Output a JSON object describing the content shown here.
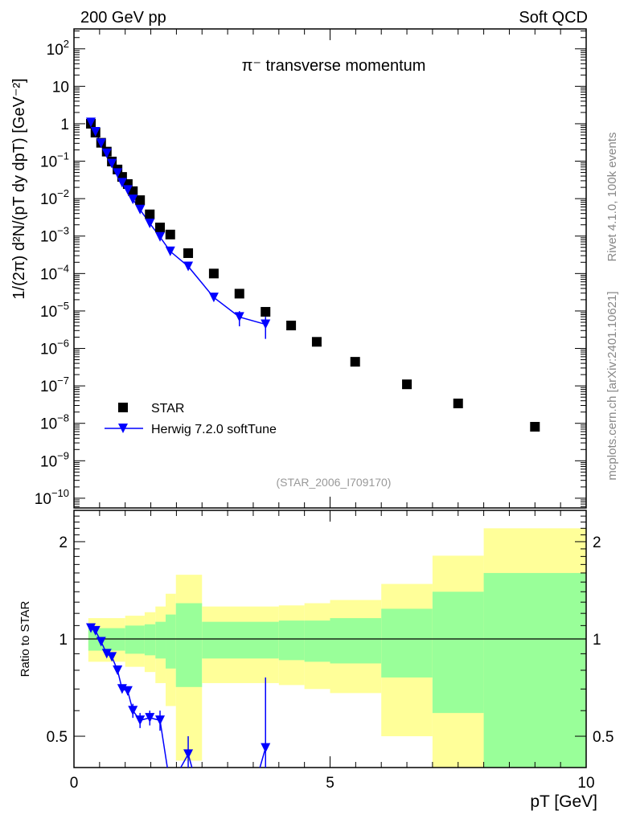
{
  "header": {
    "left": "200 GeV pp",
    "right": "Soft QCD"
  },
  "side": {
    "rivet": "Rivet 4.1.0,  100k events",
    "mcplots": "mcplots.cern.ch [arXiv:2401.10621]"
  },
  "reference": "(STAR_2006_I709170)",
  "colors": {
    "star": "#000000",
    "herwig": "#0000ff",
    "band_total": "#ffff99",
    "band_stat": "#99ff99"
  },
  "chart_data": [
    {
      "type": "scatter",
      "title": "π⁻ transverse momentum",
      "ylabel": "1/(2π)  d²N/(pT dy dpT) [GeV⁻²]",
      "ylabel_parts": {
        "a": "1/(2π)  d",
        "sup2": "2",
        "b": "N/(p",
        "subT": "T",
        "c": " dy dp",
        "subT2": "T",
        "d": ") [GeV",
        "supm2": "-2",
        "e": "]"
      },
      "yscale": "log",
      "ylim": [
        5.5e-11,
        340
      ],
      "xlim": [
        0,
        10
      ],
      "yticks": [
        {
          "v": 1e-10,
          "base": "10",
          "exp": "−10"
        },
        {
          "v": 1e-09,
          "base": "10",
          "exp": "−9"
        },
        {
          "v": 1e-08,
          "base": "10",
          "exp": "−8"
        },
        {
          "v": 1e-07,
          "base": "10",
          "exp": "−7"
        },
        {
          "v": 1e-06,
          "base": "10",
          "exp": "−6"
        },
        {
          "v": 1e-05,
          "base": "10",
          "exp": "−5"
        },
        {
          "v": 0.0001,
          "base": "10",
          "exp": "−4"
        },
        {
          "v": 0.001,
          "base": "10",
          "exp": "−3"
        },
        {
          "v": 0.01,
          "base": "10",
          "exp": "−2"
        },
        {
          "v": 0.1,
          "base": "10",
          "exp": "−1"
        },
        {
          "v": 1,
          "base": "1",
          "exp": ""
        },
        {
          "v": 10,
          "base": "10",
          "exp": ""
        },
        {
          "v": 100,
          "base": "10",
          "exp": "2"
        }
      ],
      "legend": {
        "position": "bottom-left",
        "entries": [
          "STAR",
          "Herwig 7.2.0 softTune"
        ]
      },
      "series": [
        {
          "name": "STAR",
          "marker": "square",
          "x": [
            0.33,
            0.42,
            0.53,
            0.64,
            0.74,
            0.85,
            0.94,
            1.05,
            1.15,
            1.29,
            1.48,
            1.68,
            1.88,
            2.23,
            2.73,
            3.23,
            3.74,
            4.24,
            4.74,
            5.49,
            6.5,
            7.5,
            9.0
          ],
          "y": [
            1.0,
            0.58,
            0.31,
            0.18,
            0.098,
            0.06,
            0.038,
            0.0245,
            0.0158,
            0.0091,
            0.0038,
            0.0017,
            0.0011,
            0.00035,
            0.0001,
            2.9e-05,
            9.5e-06,
            4.1e-06,
            1.5e-06,
            4.4e-07,
            1.1e-07,
            3.4e-08,
            8.1e-09
          ]
        },
        {
          "name": "Herwig 7.2.0 softTune",
          "marker": "triangle-down",
          "x": [
            0.33,
            0.42,
            0.53,
            0.64,
            0.74,
            0.85,
            0.94,
            1.05,
            1.15,
            1.29,
            1.48,
            1.68,
            1.88,
            2.23,
            2.73,
            3.23,
            3.74
          ],
          "y": [
            1.08,
            0.61,
            0.3,
            0.162,
            0.086,
            0.048,
            0.0266,
            0.017,
            0.0095,
            0.0051,
            0.00218,
            0.00095,
            0.00039,
            0.000155,
            2.3e-05,
            6.9e-06,
            4.4e-06
          ],
          "yerr": [
            0,
            0,
            0,
            0,
            0,
            0,
            0,
            0,
            0,
            0,
            0,
            0,
            0,
            0,
            4e-06,
            3e-06,
            2.6e-06
          ]
        }
      ]
    },
    {
      "type": "line",
      "ylabel": "Ratio to STAR",
      "xlabel": "pT [GeV]",
      "xlabel_parts": {
        "p": "p",
        "sub": "T",
        "rest": " [GeV]"
      },
      "yscale": "log",
      "ylim": [
        0.4,
        2.5
      ],
      "xlim": [
        0,
        10
      ],
      "xticks": [
        {
          "v": 0,
          "label": "0"
        },
        {
          "v": 5,
          "label": "5"
        },
        {
          "v": 10,
          "label": "10"
        }
      ],
      "yticks": [
        {
          "v": 0.5,
          "label": "0.5"
        },
        {
          "v": 1,
          "label": "1"
        },
        {
          "v": 2,
          "label": "2"
        }
      ],
      "bands": [
        {
          "xlo": 0.28,
          "xhi": 1.0,
          "total": [
            0.85,
            1.16
          ],
          "stat": [
            0.92,
            1.08
          ]
        },
        {
          "xlo": 1.0,
          "xhi": 1.38,
          "total": [
            0.82,
            1.18
          ],
          "stat": [
            0.9,
            1.1
          ]
        },
        {
          "xlo": 1.38,
          "xhi": 1.59,
          "total": [
            0.79,
            1.21
          ],
          "stat": [
            0.89,
            1.11
          ]
        },
        {
          "xlo": 1.59,
          "xhi": 1.79,
          "total": [
            0.73,
            1.26
          ],
          "stat": [
            0.87,
            1.13
          ]
        },
        {
          "xlo": 1.79,
          "xhi": 1.99,
          "total": [
            0.62,
            1.38
          ],
          "stat": [
            0.81,
            1.19
          ]
        },
        {
          "xlo": 1.99,
          "xhi": 2.5,
          "total": [
            0.42,
            1.58
          ],
          "stat": [
            0.71,
            1.29
          ]
        },
        {
          "xlo": 2.5,
          "xhi": 4.0,
          "total": [
            0.73,
            1.26
          ],
          "stat": [
            0.87,
            1.13
          ]
        },
        {
          "xlo": 4.0,
          "xhi": 4.5,
          "total": [
            0.72,
            1.27
          ],
          "stat": [
            0.86,
            1.14
          ]
        },
        {
          "xlo": 4.5,
          "xhi": 5.0,
          "total": [
            0.7,
            1.29
          ],
          "stat": [
            0.85,
            1.14
          ]
        },
        {
          "xlo": 5.0,
          "xhi": 6.0,
          "total": [
            0.68,
            1.32
          ],
          "stat": [
            0.84,
            1.16
          ]
        },
        {
          "xlo": 6.0,
          "xhi": 7.0,
          "total": [
            0.5,
            1.48
          ],
          "stat": [
            0.76,
            1.24
          ]
        },
        {
          "xlo": 7.0,
          "xhi": 8.0,
          "total": [
            0.35,
            1.81
          ],
          "stat": [
            0.59,
            1.4
          ]
        },
        {
          "xlo": 8.0,
          "xhi": 10.0,
          "total": [
            0.35,
            2.2
          ],
          "stat": [
            0.4,
            1.6
          ]
        }
      ],
      "series": [
        {
          "name": "Herwig 7.2.0 softTune / STAR",
          "x": [
            0.33,
            0.42,
            0.53,
            0.64,
            0.74,
            0.85,
            0.94,
            1.05,
            1.15,
            1.29,
            1.48,
            1.68,
            1.88,
            2.23,
            2.73,
            3.23,
            3.74
          ],
          "y": [
            1.08,
            1.06,
            0.98,
            0.9,
            0.88,
            0.8,
            0.7,
            0.69,
            0.6,
            0.56,
            0.57,
            0.56,
            0.35,
            0.44,
            0.23,
            0.24,
            0.46
          ],
          "yerr": [
            0,
            0,
            0,
            0,
            0,
            0.02,
            0.02,
            0.02,
            0.03,
            0.03,
            0.03,
            0.04,
            0.05,
            0.06,
            0.05,
            0.05,
            0.3
          ]
        }
      ]
    }
  ]
}
